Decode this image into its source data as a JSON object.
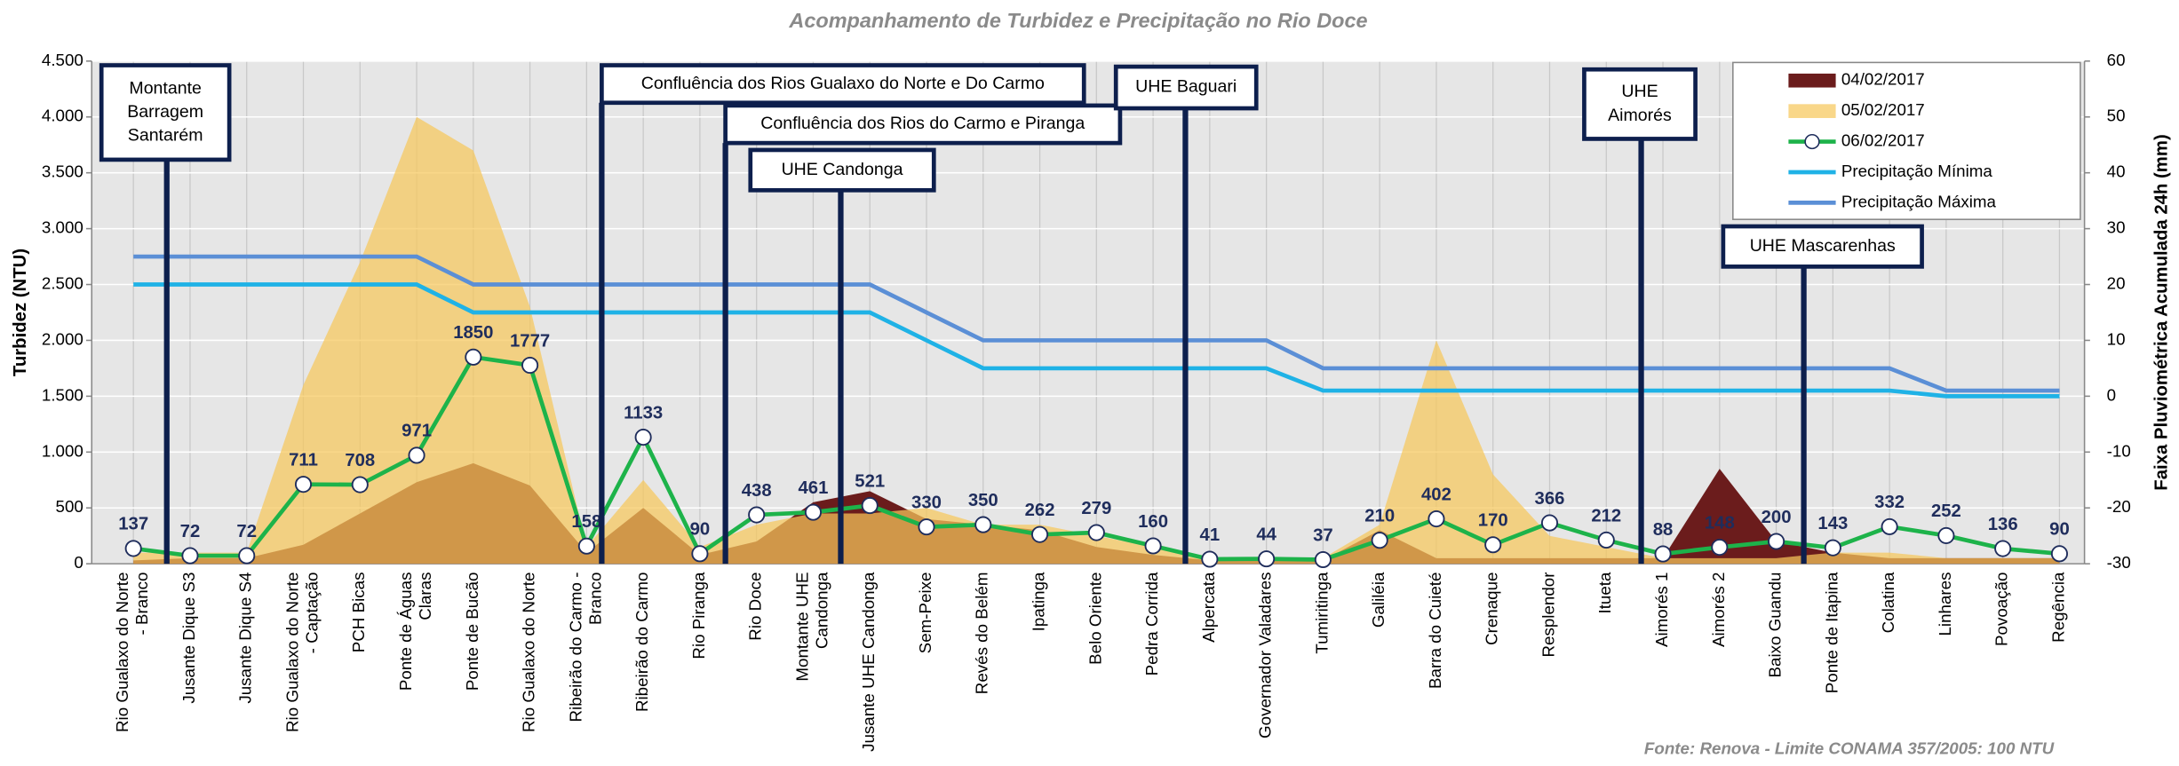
{
  "chart_data": {
    "type": "area_line",
    "title": "Acompanhamento de Turbidez e Precipitação no Rio Doce",
    "source": "Fonte: Renova - Limite CONAMA 357/2005: 100 NTU",
    "ylabel": "Turbidez (NTU)",
    "y2label": "Faixa Pluviométrica Acumulada 24h (mm)",
    "categories": [
      "Rio Gualaxo do Norte - Branco",
      "Jusante Dique S3",
      "Jusante Dique S4",
      "Rio Gualaxo do Norte - Captação",
      "PCH Bicas",
      "Ponte de Águas Claras",
      "Ponte de Bucão",
      "Rio Gualaxo do Norte",
      "Ribeirão do Carmo - Branco",
      "Ribeirão do Carmo",
      "Rio Piranga",
      "Rio Doce",
      "Montante UHE Candonga",
      "Jusante UHE Candonga",
      "Sem-Peixe",
      "Revés do Belém",
      "Ipatinga",
      "Belo Oriente",
      "Pedra Corrida",
      "Alpercata",
      "Governador Valadares",
      "Tumiritinga",
      "Galiléia",
      "Barra do Cuieté",
      "Crenaque",
      "Resplendor",
      "Itueta",
      "Aimorés 1",
      "Aimorés 2",
      "Baixo Guandu",
      "Ponte de Itapina",
      "Colatina",
      "Linhares",
      "Povoação",
      "Regência"
    ],
    "series": [
      {
        "name": "04/02/2017",
        "type": "area",
        "color": "#6b1c1c",
        "values": [
          30,
          50,
          50,
          170,
          450,
          730,
          900,
          700,
          100,
          500,
          80,
          200,
          550,
          650,
          400,
          350,
          300,
          150,
          80,
          30,
          30,
          30,
          300,
          50,
          50,
          50,
          50,
          50,
          850,
          200,
          100,
          50,
          50,
          50,
          50
        ]
      },
      {
        "name": "05/02/2017",
        "type": "area",
        "color": "#f7c85c",
        "values": [
          100,
          100,
          100,
          1600,
          2700,
          4000,
          3700,
          2300,
          150,
          750,
          150,
          350,
          450,
          450,
          500,
          350,
          350,
          250,
          150,
          50,
          50,
          50,
          350,
          2000,
          800,
          250,
          150,
          50,
          50,
          50,
          100,
          100,
          50,
          50,
          50
        ]
      },
      {
        "name": "06/02/2017",
        "type": "line",
        "color": "#1db34a",
        "labels": true,
        "values": [
          137,
          72,
          72,
          711,
          708,
          971,
          1850,
          1777,
          158,
          1133,
          90,
          438,
          461,
          521,
          330,
          350,
          262,
          279,
          160,
          41,
          44,
          37,
          210,
          402,
          170,
          366,
          212,
          88,
          148,
          200,
          143,
          332,
          252,
          136,
          90
        ]
      },
      {
        "name": "Precipitação Mínima",
        "type": "line",
        "axis": "y2",
        "color": "#1fb2e6",
        "values": [
          20,
          20,
          20,
          20,
          20,
          20,
          15,
          15,
          15,
          15,
          15,
          15,
          15,
          15,
          10,
          5,
          5,
          5,
          5,
          5,
          5,
          1,
          1,
          1,
          1,
          1,
          1,
          1,
          1,
          1,
          1,
          1,
          0,
          0,
          0
        ]
      },
      {
        "name": "Precipitação Máxima",
        "type": "line",
        "axis": "y2",
        "color": "#5b8fd6",
        "values": [
          25,
          25,
          25,
          25,
          25,
          25,
          20,
          20,
          20,
          20,
          20,
          20,
          20,
          20,
          15,
          10,
          10,
          10,
          10,
          10,
          10,
          5,
          5,
          5,
          5,
          5,
          5,
          5,
          5,
          5,
          5,
          5,
          1,
          1,
          1
        ]
      }
    ],
    "ylim": [
      0,
      4500
    ],
    "yticks": [
      {
        "value": 0,
        "label": "0"
      },
      {
        "value": 500,
        "label": "500"
      },
      {
        "value": 1000,
        "label": "1.000"
      },
      {
        "value": 1500,
        "label": "1.500"
      },
      {
        "value": 2000,
        "label": "2.000"
      },
      {
        "value": 2500,
        "label": "2.500"
      },
      {
        "value": 3000,
        "label": "3.000"
      },
      {
        "value": 3500,
        "label": "3.500"
      },
      {
        "value": 4000,
        "label": "4.000"
      },
      {
        "value": 4500,
        "label": "4.500"
      }
    ],
    "y2lim": [
      -30,
      60
    ],
    "y2ticks": [
      -30,
      -20,
      -10,
      0,
      10,
      20,
      30,
      40,
      50,
      60
    ],
    "grid": true,
    "legend": "top-right",
    "annotations": [
      {
        "text": [
          "Montante",
          "Barragem",
          "Santarém"
        ]
      },
      {
        "text": [
          "Confluência dos Rios  Gualaxo do Norte e Do Carmo"
        ]
      },
      {
        "text": [
          "Confluência dos Rios  do Carmo e Piranga"
        ]
      },
      {
        "text": [
          "UHE Candonga"
        ]
      },
      {
        "text": [
          "UHE Baguari"
        ]
      },
      {
        "text": [
          "UHE",
          "Aimorés"
        ]
      },
      {
        "text": [
          "UHE Mascarenhas"
        ]
      }
    ]
  }
}
